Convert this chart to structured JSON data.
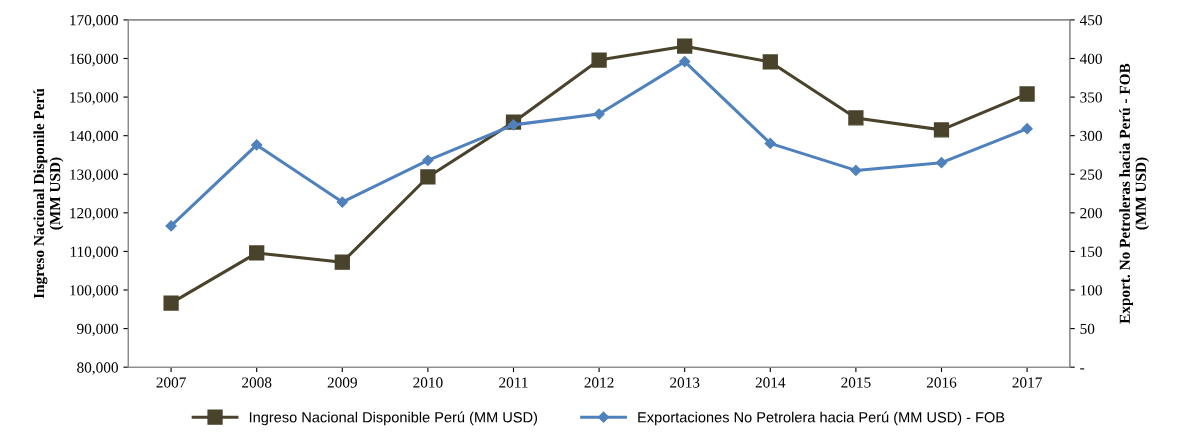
{
  "chart_data": {
    "type": "line",
    "ylabel": "Ingreso Nacional Disponile Perú\n(MM USD)",
    "y2label": "Export. No Petroleras hacia Perú - FOB\n(MM USD)",
    "categories": [
      "2007",
      "2008",
      "2009",
      "2010",
      "2011",
      "2012",
      "2013",
      "2014",
      "2015",
      "2016",
      "2017"
    ],
    "series": [
      {
        "name": "Ingreso Nacional Disponible Perú (MM USD)",
        "color": "#4a432b",
        "marker": "square",
        "values": [
          96600,
          109600,
          107200,
          129300,
          143500,
          159600,
          163200,
          159100,
          144600,
          141500,
          150800
        ]
      },
      {
        "name": "Exportaciones No Petrolera hacia Perú (MM USD) - FOB",
        "color": "#4f81bd",
        "marker": "diamond",
        "axis": "y2",
        "values": [
          183,
          288,
          214,
          268,
          314,
          328,
          396,
          290,
          255,
          265,
          309
        ]
      }
    ],
    "ylim": [
      80000,
      170000
    ],
    "yticks": [
      {
        "value": 80000,
        "label": "80,000"
      },
      {
        "value": 90000,
        "label": "90,000"
      },
      {
        "value": 100000,
        "label": "100,000"
      },
      {
        "value": 110000,
        "label": "110,000"
      },
      {
        "value": 120000,
        "label": "120,000"
      },
      {
        "value": 130000,
        "label": "130,000"
      },
      {
        "value": 140000,
        "label": "140,000"
      },
      {
        "value": 150000,
        "label": "150,000"
      },
      {
        "value": 160000,
        "label": "160,000"
      },
      {
        "value": 170000,
        "label": "170,000"
      }
    ],
    "y2lim": [
      0,
      450
    ],
    "y2ticks": [
      {
        "value": 0,
        "label": "-"
      },
      50,
      100,
      150,
      200,
      250,
      300,
      350,
      400,
      450
    ],
    "grid": false,
    "legend": "bottom"
  }
}
